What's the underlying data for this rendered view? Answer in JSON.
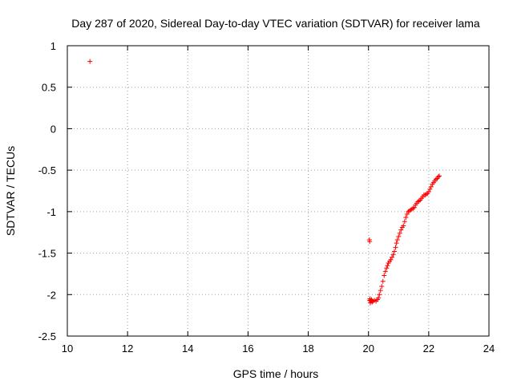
{
  "chart_data": {
    "type": "scatter",
    "title": "Day 287 of 2020, Sidereal Day-to-day VTEC variation (SDTVAR) for receiver lama",
    "xlabel": "GPS time / hours",
    "ylabel": "SDTVAR / TECUs",
    "xlim": [
      10,
      24
    ],
    "ylim": [
      -2.5,
      1
    ],
    "xticks": [
      10,
      12,
      14,
      16,
      18,
      20,
      22,
      24
    ],
    "yticks": [
      1,
      0.5,
      0,
      -0.5,
      -1,
      -1.5,
      -2,
      -2.5
    ],
    "xtick_labels": [
      "10",
      "12",
      "14",
      "16",
      "18",
      "20",
      "22",
      "24"
    ],
    "ytick_labels": [
      "1",
      "0.5",
      "0",
      "-0.5",
      "-1",
      "-1.5",
      "-2",
      "-2.5"
    ],
    "grid": true,
    "marker": "plus",
    "color": "#ff0000",
    "series": [
      {
        "x": [
          10.75,
          20.03,
          20.04,
          20.04,
          20.05,
          20.06,
          20.08,
          20.1,
          20.12,
          20.15,
          20.2,
          20.25,
          20.3,
          20.33,
          20.36,
          20.4,
          20.44,
          20.48,
          20.52,
          20.56,
          20.6,
          20.63,
          20.66,
          20.7,
          20.74,
          20.78,
          20.82,
          20.86,
          20.9,
          20.93,
          20.96,
          21.0,
          21.04,
          21.08,
          21.12,
          21.16,
          21.2,
          21.24,
          21.28,
          21.32,
          21.36,
          21.4,
          21.44,
          21.48,
          21.52,
          21.56,
          21.6,
          21.64,
          21.68,
          21.72,
          21.76,
          21.8,
          21.84,
          21.88,
          21.92,
          21.96,
          22.0,
          22.04,
          22.08,
          22.12,
          22.16,
          22.2,
          22.24,
          22.28,
          22.32,
          22.35
        ],
        "y": [
          0.81,
          -1.34,
          -1.36,
          -2.07,
          -2.05,
          -2.1,
          -2.08,
          -2.06,
          -2.09,
          -2.08,
          -2.07,
          -2.08,
          -2.06,
          -2.04,
          -2.0,
          -1.95,
          -1.9,
          -1.84,
          -1.77,
          -1.72,
          -1.68,
          -1.65,
          -1.62,
          -1.6,
          -1.58,
          -1.55,
          -1.52,
          -1.48,
          -1.43,
          -1.38,
          -1.34,
          -1.3,
          -1.26,
          -1.22,
          -1.19,
          -1.17,
          -1.12,
          -1.07,
          -1.03,
          -1.0,
          -0.99,
          -0.98,
          -0.97,
          -0.96,
          -0.95,
          -0.92,
          -0.9,
          -0.88,
          -0.87,
          -0.86,
          -0.84,
          -0.82,
          -0.8,
          -0.8,
          -0.79,
          -0.78,
          -0.76,
          -0.73,
          -0.7,
          -0.67,
          -0.65,
          -0.63,
          -0.61,
          -0.6,
          -0.58,
          -0.57
        ]
      }
    ]
  }
}
